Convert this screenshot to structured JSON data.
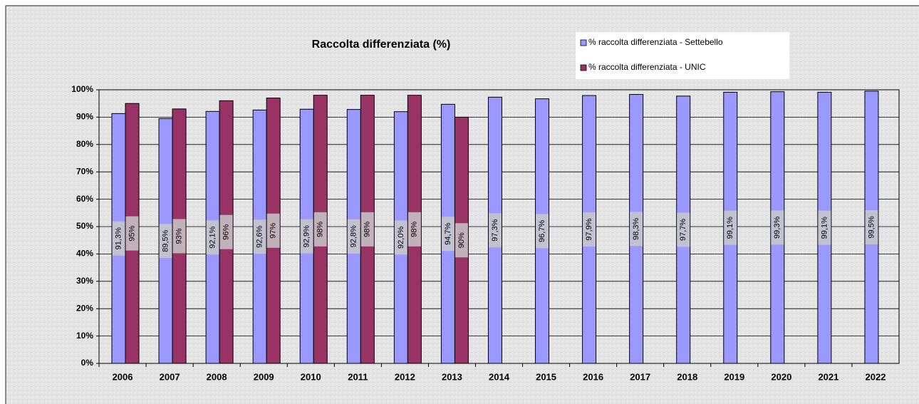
{
  "chart_data": {
    "type": "bar",
    "title": "Raccolta  differenziata  (%)",
    "categories": [
      "2006",
      "2007",
      "2008",
      "2009",
      "2010",
      "2011",
      "2012",
      "2013",
      "2014",
      "2015",
      "2016",
      "2017",
      "2018",
      "2019",
      "2020",
      "2021",
      "2022"
    ],
    "series": [
      {
        "name": "% raccolta differenziata - Settebello",
        "color": "#9999ff",
        "values": [
          91.3,
          89.5,
          92.1,
          92.6,
          92.9,
          92.8,
          92.0,
          94.7,
          97.3,
          96.7,
          97.9,
          98.3,
          97.7,
          99.1,
          99.3,
          99.1,
          99.5
        ],
        "value_labels": [
          "91,3%",
          "89,5%",
          "92,1%",
          "92,6%",
          "92,9%",
          "92,8%",
          "92,0%",
          "94,7%",
          "97,3%",
          "96,7%",
          "97,9%",
          "98,3%",
          "97,7%",
          "99,1%",
          "99,3%",
          "99,1%",
          "99,5%"
        ]
      },
      {
        "name": "% raccolta differenziata - UNIC",
        "color": "#993366",
        "values": [
          95,
          93,
          96,
          97,
          98,
          98,
          98,
          90,
          null,
          null,
          null,
          null,
          null,
          null,
          null,
          null,
          null
        ],
        "value_labels": [
          "95%",
          "93%",
          "96%",
          "97%",
          "98%",
          "98%",
          "98%",
          "90%",
          null,
          null,
          null,
          null,
          null,
          null,
          null,
          null,
          null
        ]
      }
    ],
    "ylim": [
      0,
      100
    ],
    "yticks": [
      {
        "value": 0,
        "label": "0%"
      },
      {
        "value": 10,
        "label": "10%"
      },
      {
        "value": 20,
        "label": "20%"
      },
      {
        "value": 30,
        "label": "30%"
      },
      {
        "value": 40,
        "label": "40%"
      },
      {
        "value": 50,
        "label": "50%"
      },
      {
        "value": 60,
        "label": "60%"
      },
      {
        "value": 70,
        "label": "70%"
      },
      {
        "value": 80,
        "label": "80%"
      },
      {
        "value": 90,
        "label": "90%"
      },
      {
        "value": 100,
        "label": "100%"
      }
    ],
    "grid": true
  }
}
